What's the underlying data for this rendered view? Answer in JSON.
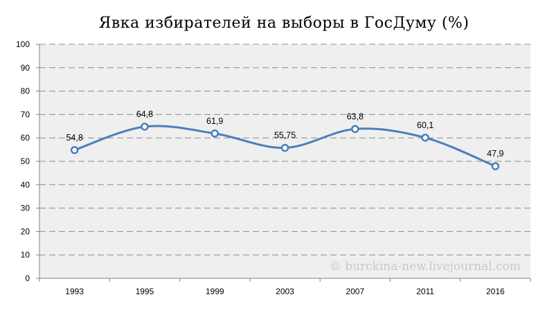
{
  "chart_data": {
    "type": "line",
    "title": "Явка избирателей на выборы в ГосДуму (%)",
    "categories": [
      "1993",
      "1995",
      "1999",
      "2003",
      "2007",
      "2011",
      "2016"
    ],
    "series": [
      {
        "values": [
          54.8,
          64.8,
          61.9,
          55.75,
          63.8,
          60.1,
          47.9
        ]
      }
    ],
    "data_labels": [
      "54,8",
      "64,8",
      "61,9",
      "55,75",
      "63,8",
      "60,1",
      "47,9"
    ],
    "ylim": [
      0,
      100
    ],
    "yticks": [
      "0",
      "10",
      "20",
      "30",
      "40",
      "50",
      "60",
      "70",
      "80",
      "90",
      "100"
    ],
    "grid": true,
    "smooth": true,
    "line_color": "#4a7ebb",
    "plot_background": "#efefef"
  },
  "watermark": "© burckina-new.livejournal.com"
}
